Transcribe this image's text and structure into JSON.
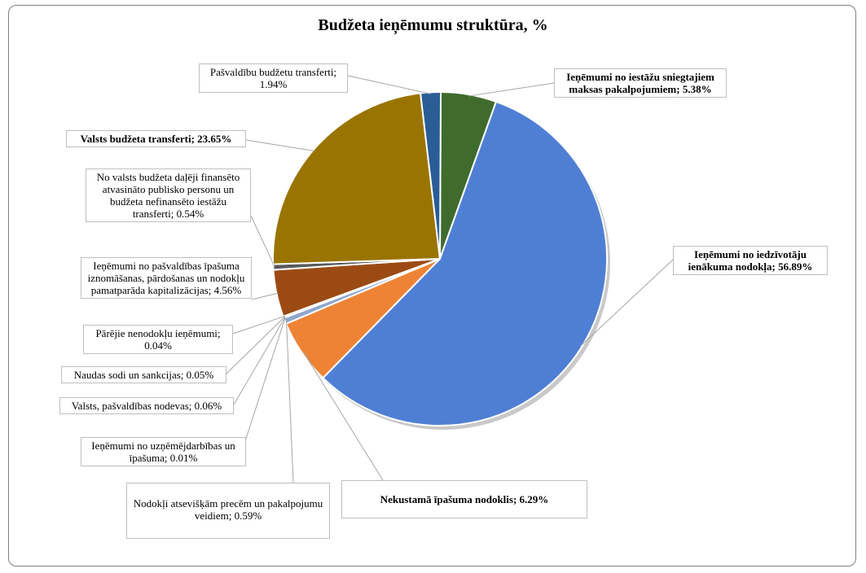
{
  "chart_data": {
    "type": "pie",
    "title": "Budžeta ieņēmumu struktūra, %",
    "slices": [
      {
        "label": "Ieņēmumi no iestāžu sniegtajiem maksas pakalpojumiem; 5.38%",
        "value": 5.38,
        "color": "#3f6b2d"
      },
      {
        "label": "Ieņēmumi no iedzīvotāju ienākuma nodokļa; 56.89%",
        "value": 56.89,
        "color": "#4f7fd4"
      },
      {
        "label": "Nekustamā īpašuma nodoklis; 6.29%",
        "value": 6.29,
        "color": "#ee8336"
      },
      {
        "label": "Nodokļi atsevišķām precēm un pakalpojumu veidiem; 0.59%",
        "value": 0.59,
        "color": "#8fa7cf"
      },
      {
        "label": "Ieņēmumi no uzņēmējdarbības un īpašuma; 0.01%",
        "value": 0.01,
        "color": "#9e9e9e"
      },
      {
        "label": "Valsts, pašvaldības nodevas; 0.06%",
        "value": 0.06,
        "color": "#c9a227"
      },
      {
        "label": "Naudas sodi un sankcijas; 0.05%",
        "value": 0.05,
        "color": "#6e8fc9"
      },
      {
        "label": "Pārējie nenodokļu ieņēmumi; 0.04%",
        "value": 0.04,
        "color": "#7aa04a"
      },
      {
        "label": "Ieņēmumi no pašvaldības īpašuma iznomāšanas, pārdošanas un nodokļu pamatparāda kapitalizācijas; 4.56%",
        "value": 4.56,
        "color": "#9c4a14"
      },
      {
        "label": "No valsts budžeta daļēji finansēto atvasināto publisko personu un budžeta nefinansēto iestāžu transferti; 0.54%",
        "value": 0.54,
        "color": "#5a5a5a"
      },
      {
        "label": "Valsts budžeta transferti; 23.65%",
        "value": 23.65,
        "color": "#9a7400"
      },
      {
        "label": "Pašvaldību budžetu transferti; 1.94%",
        "value": 1.94,
        "color": "#2a5d96"
      }
    ]
  }
}
